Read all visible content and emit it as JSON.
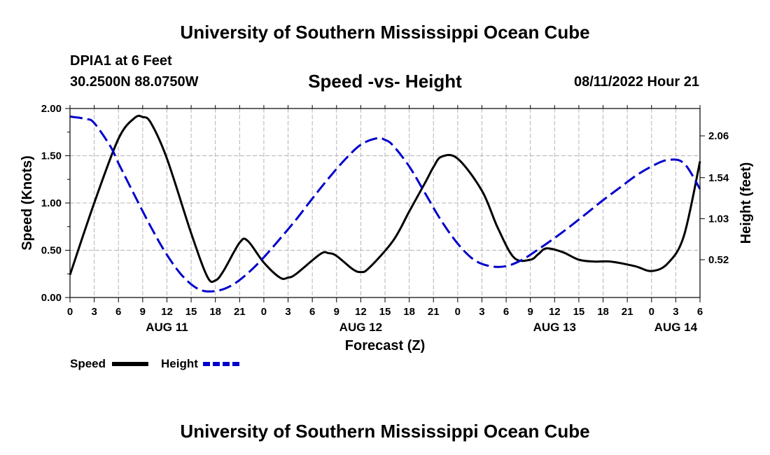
{
  "header": {
    "title": "University of Southern Mississippi Ocean Cube",
    "station": "DPIA1 at 6 Feet",
    "coords": "30.2500N  88.0750W",
    "subtitle": "Speed -vs- Height",
    "timestamp": "08/11/2022 Hour 21"
  },
  "footer": {
    "title": "University of Southern Mississippi Ocean Cube"
  },
  "chart_data": {
    "type": "line",
    "title": "Speed -vs- Height",
    "xlabel": "Forecast (Z)",
    "ylabel": "Speed (Knots)",
    "y2label": "Height (feet)",
    "x_tick_labels": [
      "0",
      "3",
      "6",
      "9",
      "12",
      "15",
      "18",
      "21",
      "0",
      "3",
      "6",
      "9",
      "12",
      "15",
      "18",
      "21",
      "0",
      "3",
      "6",
      "9",
      "12",
      "15",
      "18",
      "21",
      "0",
      "3",
      "6"
    ],
    "day_labels": [
      {
        "label": "AUG 11",
        "hour": 12
      },
      {
        "label": "AUG 12",
        "hour": 36
      },
      {
        "label": "AUG 13",
        "hour": 60
      },
      {
        "label": "AUG 14",
        "hour": 75
      }
    ],
    "xlim": [
      0,
      78
    ],
    "ylim": [
      0,
      2.0
    ],
    "y_ticks": [
      "0.00",
      "0.50",
      "1.00",
      "1.50",
      "2.00"
    ],
    "y2lim": [
      0.05,
      2.4
    ],
    "y2_ticks": [
      "0.52",
      "1.03",
      "1.54",
      "2.06"
    ],
    "grid": true,
    "legend": [
      {
        "name": "Speed",
        "color": "#000000",
        "style": "solid"
      },
      {
        "name": "Height",
        "color": "#0000cc",
        "style": "dashed"
      }
    ],
    "series": [
      {
        "name": "Speed",
        "axis": "left",
        "color": "#000000",
        "style": "solid",
        "x": [
          0,
          3,
          6,
          8,
          9,
          10,
          12,
          15,
          17,
          18,
          19,
          21,
          22,
          24,
          26,
          27,
          28,
          31,
          32,
          33,
          35,
          36,
          37,
          40,
          42,
          44,
          45,
          46,
          48,
          51,
          53,
          55,
          57,
          58,
          59,
          61,
          63,
          65,
          67,
          70,
          72,
          74,
          76,
          78
        ],
        "y": [
          0.24,
          1.0,
          1.68,
          1.9,
          1.91,
          1.85,
          1.47,
          0.68,
          0.22,
          0.18,
          0.28,
          0.58,
          0.6,
          0.37,
          0.21,
          0.21,
          0.25,
          0.46,
          0.47,
          0.44,
          0.3,
          0.27,
          0.31,
          0.6,
          0.91,
          1.22,
          1.38,
          1.49,
          1.47,
          1.13,
          0.73,
          0.42,
          0.4,
          0.46,
          0.52,
          0.48,
          0.4,
          0.38,
          0.38,
          0.33,
          0.28,
          0.36,
          0.65,
          1.44
        ]
      },
      {
        "name": "Height",
        "axis": "right",
        "color": "#0000cc",
        "style": "dashed",
        "x": [
          0,
          2,
          3,
          5,
          6,
          8,
          10,
          12,
          14,
          16,
          18,
          20,
          22,
          24,
          26,
          28,
          30,
          32,
          34,
          36,
          38,
          39,
          40,
          42,
          44,
          46,
          48,
          50,
          52,
          54,
          56,
          58,
          60,
          62,
          64,
          66,
          68,
          70,
          72,
          74,
          76,
          78
        ],
        "y": [
          2.3,
          2.27,
          2.22,
          1.93,
          1.72,
          1.32,
          0.93,
          0.58,
          0.31,
          0.15,
          0.13,
          0.2,
          0.35,
          0.55,
          0.78,
          1.02,
          1.28,
          1.53,
          1.76,
          1.95,
          2.03,
          2.01,
          1.94,
          1.68,
          1.34,
          1.0,
          0.72,
          0.52,
          0.44,
          0.44,
          0.52,
          0.65,
          0.79,
          0.94,
          1.1,
          1.26,
          1.41,
          1.56,
          1.68,
          1.76,
          1.72,
          1.4
        ]
      }
    ]
  }
}
